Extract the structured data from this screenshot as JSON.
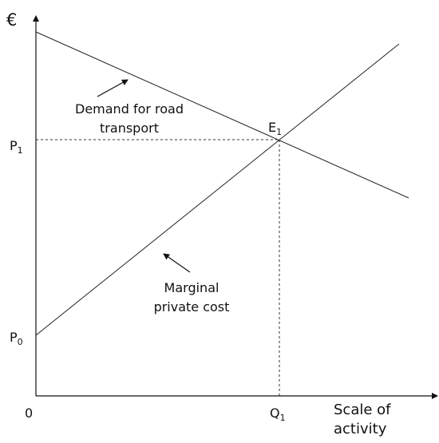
{
  "axes": {
    "y_label": "€",
    "origin": "0",
    "x_label_lines": [
      "Scale of",
      "activity"
    ]
  },
  "points": {
    "p1": {
      "text": "P",
      "subscript": "1"
    },
    "p0": {
      "text": "P",
      "subscript": "0"
    },
    "q1": {
      "text": "Q",
      "subscript": "1"
    },
    "e1": {
      "text": "E",
      "subscript": "1"
    }
  },
  "curves": {
    "demand": {
      "label_lines": [
        "Demand for road",
        "transport"
      ]
    },
    "mpc": {
      "label_lines": [
        "Marginal",
        "private cost"
      ]
    }
  }
}
